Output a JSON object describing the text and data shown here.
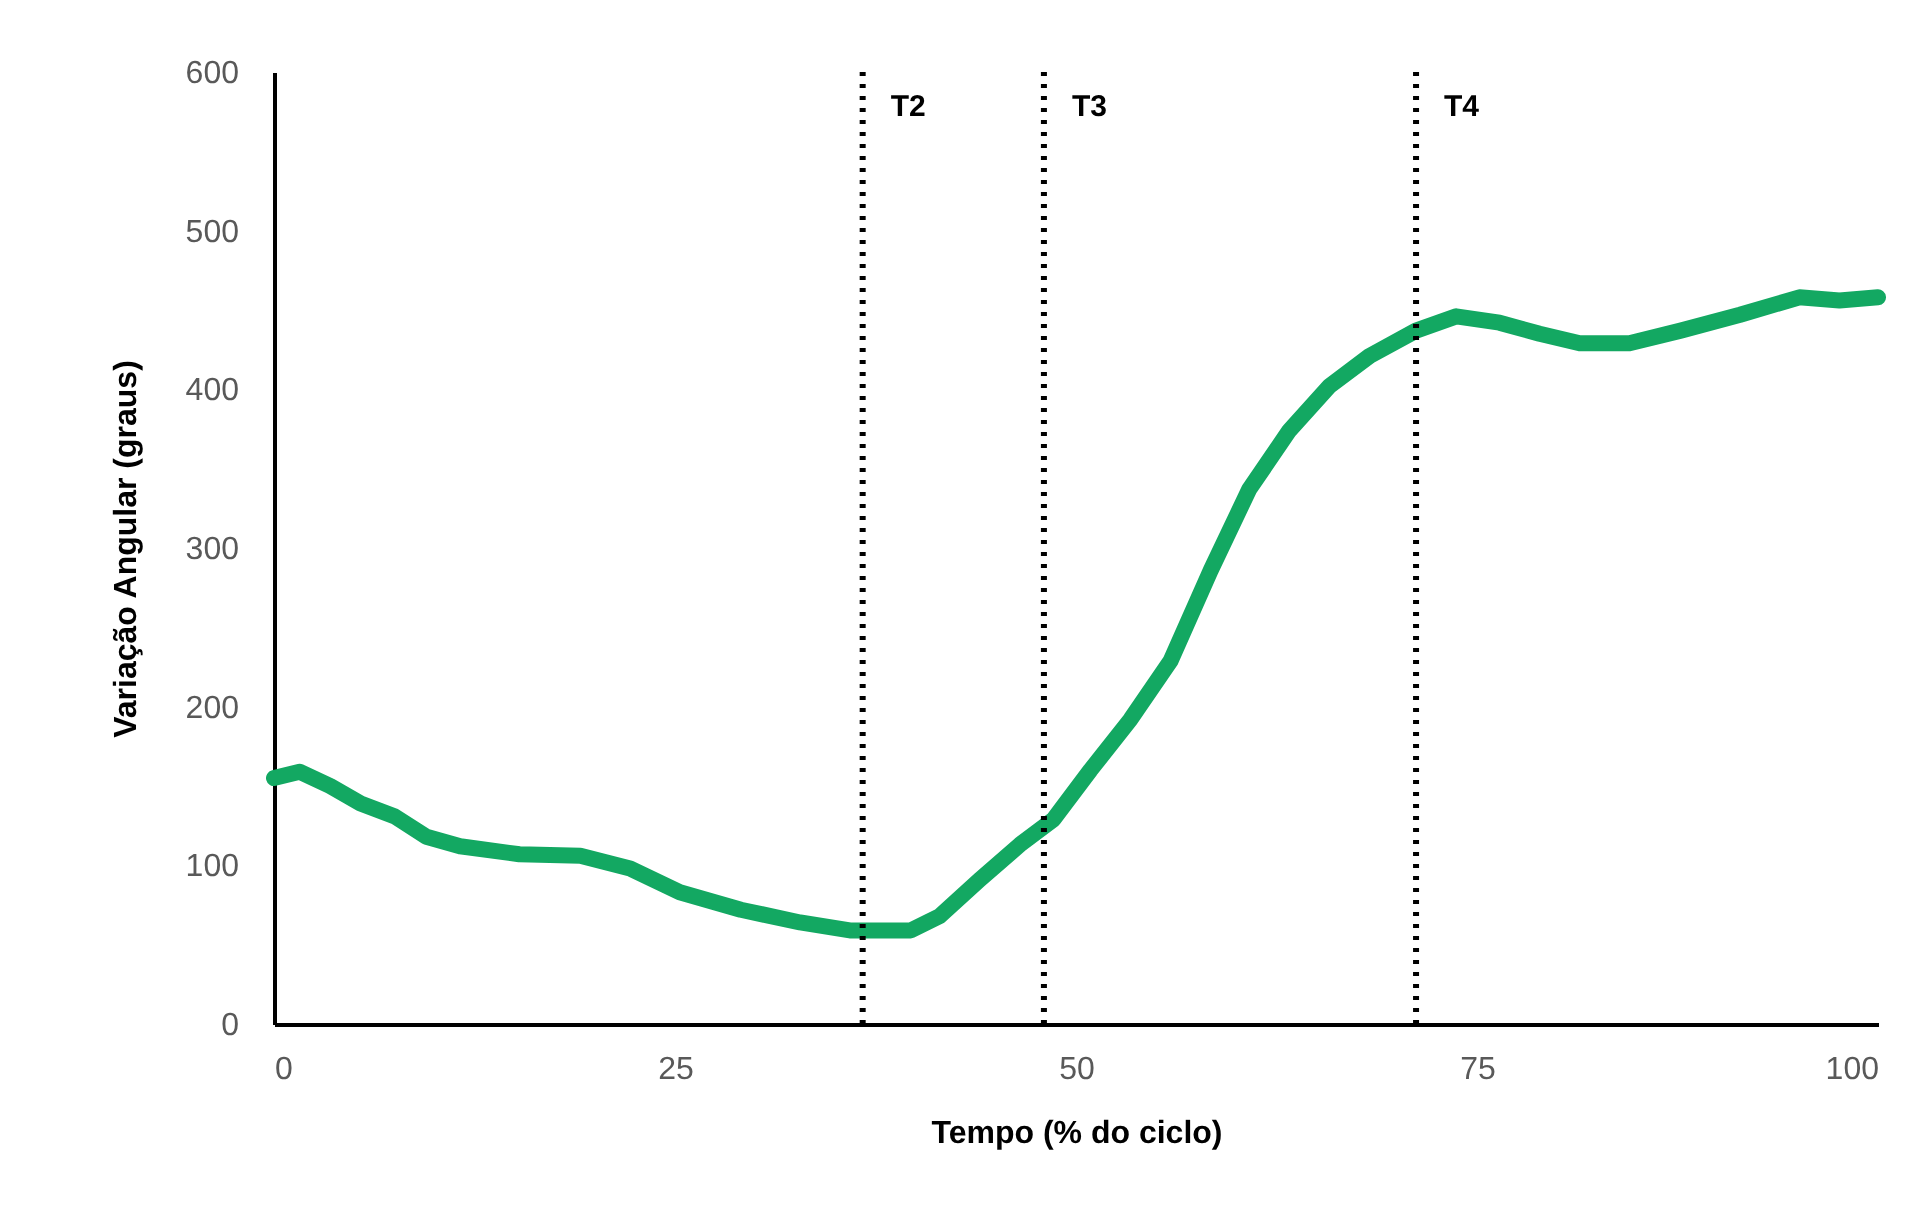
{
  "chart_data": {
    "type": "line",
    "xlabel": "Tempo (% do ciclo)",
    "ylabel": "Variação Angular (graus)",
    "x": [
      0,
      1.6,
      3.5,
      5.4,
      7.5,
      9.5,
      11.6,
      15.3,
      19.1,
      22.2,
      25.3,
      29.1,
      32.8,
      35.9,
      39.7,
      41.5,
      44,
      46.5,
      48.6,
      50.9,
      53.4,
      55.9,
      58.4,
      60.8,
      63.3,
      65.8,
      68.3,
      71.2,
      73.7,
      76.4,
      78.9,
      81.4,
      84.5,
      87.7,
      91.4,
      95.1,
      97.6,
      100
    ],
    "series": [
      {
        "color": "#13a862",
        "values": [
          155,
          159,
          150,
          139,
          131,
          118,
          112,
          107,
          106,
          98,
          83,
          72,
          64,
          59,
          59,
          68,
          91,
          113,
          129,
          160,
          192,
          229,
          286,
          337,
          374,
          402,
          421,
          437,
          446,
          442,
          435,
          429,
          429,
          437,
          447,
          458,
          456,
          458
        ]
      }
    ],
    "xlim": [
      0,
      100
    ],
    "xticks": [
      0,
      25,
      50,
      75,
      100
    ],
    "ylim": [
      0,
      600
    ],
    "yticks": [
      0,
      100,
      200,
      300,
      400,
      500,
      600
    ],
    "grid": false,
    "line_style": "solid",
    "ref_lines": [
      {
        "axis": "x",
        "value": 36.7,
        "label": "T2",
        "line_style": "dotted",
        "color": "#000000"
      },
      {
        "axis": "x",
        "value": 48.0,
        "label": "T3",
        "line_style": "dotted",
        "color": "#000000"
      },
      {
        "axis": "x",
        "value": 71.2,
        "label": "T4",
        "line_style": "dotted",
        "color": "#000000"
      }
    ]
  }
}
